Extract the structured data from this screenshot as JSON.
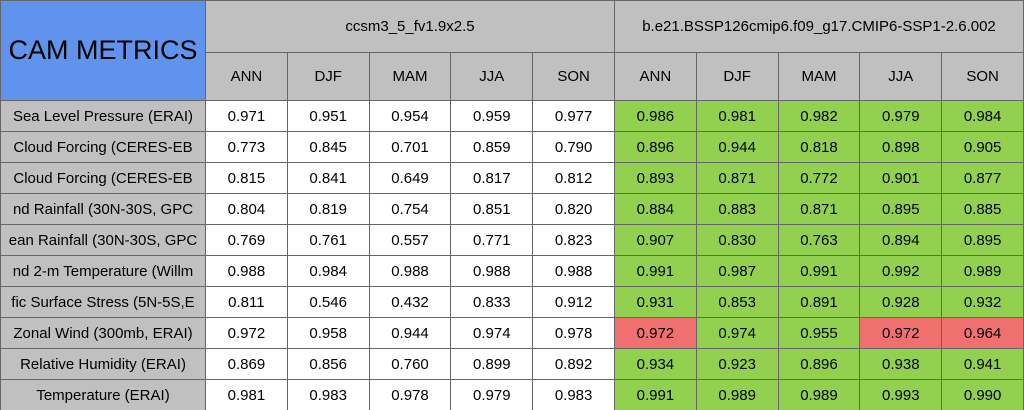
{
  "header": {
    "title": "CAM METRICS",
    "title_fill": "#5f93ec",
    "header_fill": "#c0c0c0",
    "models": [
      "ccsm3_5_fv1.9x2.5",
      "b.e21.BSSP126cmip6.f09_g17.CMIP6-SSP1-2.6.002"
    ],
    "seasons": [
      [
        "ANN",
        "DJF",
        "MAM",
        "JJA",
        "SON"
      ],
      [
        "ANN",
        "DJF",
        "MAM",
        "JJA",
        "SON"
      ]
    ]
  },
  "table": {
    "rows": [
      {
        "label": "Sea Level Pressure (ERAI)",
        "values": [
          "0.971",
          "0.951",
          "0.954",
          "0.959",
          "0.977",
          "0.986",
          "0.981",
          "0.982",
          "0.979",
          "0.984"
        ],
        "fills": [
          "#ffffff",
          "#ffffff",
          "#ffffff",
          "#ffffff",
          "#ffffff",
          "#92d050",
          "#92d050",
          "#92d050",
          "#92d050",
          "#92d050"
        ]
      },
      {
        "label": "Cloud Forcing (CERES-EB",
        "values": [
          "0.773",
          "0.845",
          "0.701",
          "0.859",
          "0.790",
          "0.896",
          "0.944",
          "0.818",
          "0.898",
          "0.905"
        ],
        "fills": [
          "#ffffff",
          "#ffffff",
          "#ffffff",
          "#ffffff",
          "#ffffff",
          "#92d050",
          "#92d050",
          "#92d050",
          "#92d050",
          "#92d050"
        ]
      },
      {
        "label": "Cloud Forcing (CERES-EB",
        "values": [
          "0.815",
          "0.841",
          "0.649",
          "0.817",
          "0.812",
          "0.893",
          "0.871",
          "0.772",
          "0.901",
          "0.877"
        ],
        "fills": [
          "#ffffff",
          "#ffffff",
          "#ffffff",
          "#ffffff",
          "#ffffff",
          "#92d050",
          "#92d050",
          "#92d050",
          "#92d050",
          "#92d050"
        ]
      },
      {
        "label": "nd Rainfall (30N-30S, GPC",
        "values": [
          "0.804",
          "0.819",
          "0.754",
          "0.851",
          "0.820",
          "0.884",
          "0.883",
          "0.871",
          "0.895",
          "0.885"
        ],
        "fills": [
          "#ffffff",
          "#ffffff",
          "#ffffff",
          "#ffffff",
          "#ffffff",
          "#92d050",
          "#92d050",
          "#92d050",
          "#92d050",
          "#92d050"
        ]
      },
      {
        "label": "ean Rainfall (30N-30S, GPC",
        "values": [
          "0.769",
          "0.761",
          "0.557",
          "0.771",
          "0.823",
          "0.907",
          "0.830",
          "0.763",
          "0.894",
          "0.895"
        ],
        "fills": [
          "#ffffff",
          "#ffffff",
          "#ffffff",
          "#ffffff",
          "#ffffff",
          "#92d050",
          "#92d050",
          "#92d050",
          "#92d050",
          "#92d050"
        ]
      },
      {
        "label": "nd 2-m Temperature (Willm",
        "values": [
          "0.988",
          "0.984",
          "0.988",
          "0.988",
          "0.988",
          "0.991",
          "0.987",
          "0.991",
          "0.992",
          "0.989"
        ],
        "fills": [
          "#ffffff",
          "#ffffff",
          "#ffffff",
          "#ffffff",
          "#ffffff",
          "#92d050",
          "#92d050",
          "#92d050",
          "#92d050",
          "#92d050"
        ]
      },
      {
        "label": "fic Surface Stress (5N-5S,E",
        "values": [
          "0.811",
          "0.546",
          "0.432",
          "0.833",
          "0.912",
          "0.931",
          "0.853",
          "0.891",
          "0.928",
          "0.932"
        ],
        "fills": [
          "#ffffff",
          "#ffffff",
          "#ffffff",
          "#ffffff",
          "#ffffff",
          "#92d050",
          "#92d050",
          "#92d050",
          "#92d050",
          "#92d050"
        ]
      },
      {
        "label": "Zonal Wind (300mb, ERAI)",
        "values": [
          "0.972",
          "0.958",
          "0.944",
          "0.974",
          "0.978",
          "0.972",
          "0.974",
          "0.955",
          "0.972",
          "0.964"
        ],
        "fills": [
          "#ffffff",
          "#ffffff",
          "#ffffff",
          "#ffffff",
          "#ffffff",
          "#f07070",
          "#92d050",
          "#92d050",
          "#f07070",
          "#f07070"
        ]
      },
      {
        "label": "Relative Humidity (ERAI)",
        "values": [
          "0.869",
          "0.856",
          "0.760",
          "0.899",
          "0.892",
          "0.934",
          "0.923",
          "0.896",
          "0.938",
          "0.941"
        ],
        "fills": [
          "#ffffff",
          "#ffffff",
          "#ffffff",
          "#ffffff",
          "#ffffff",
          "#92d050",
          "#92d050",
          "#92d050",
          "#92d050",
          "#92d050"
        ]
      },
      {
        "label": "Temperature (ERAI)",
        "values": [
          "0.981",
          "0.983",
          "0.978",
          "0.979",
          "0.983",
          "0.991",
          "0.989",
          "0.989",
          "0.993",
          "0.990"
        ],
        "fills": [
          "#ffffff",
          "#ffffff",
          "#ffffff",
          "#ffffff",
          "#ffffff",
          "#92d050",
          "#92d050",
          "#92d050",
          "#92d050",
          "#92d050"
        ]
      }
    ]
  }
}
